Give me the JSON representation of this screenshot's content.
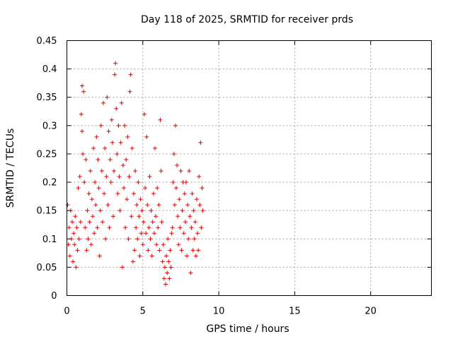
{
  "chart_data": {
    "type": "scatter",
    "title": "Day 118 of 2025, SRMTID for receiver prds",
    "xlabel": "GPS time / hours",
    "ylabel": "SRMTID / TECUs",
    "xlim": [
      0,
      24
    ],
    "ylim": [
      0,
      0.45
    ],
    "xticks": [
      0,
      5,
      10,
      15,
      20
    ],
    "yticks": [
      0,
      0.05,
      0.1,
      0.15,
      0.2,
      0.25,
      0.3,
      0.35,
      0.4,
      0.45
    ],
    "grid": true,
    "marker": "plus",
    "color": "#e00000",
    "series": [
      {
        "name": "SRMTID",
        "points": [
          [
            0.05,
            0.16
          ],
          [
            0.1,
            0.09
          ],
          [
            0.15,
            0.12
          ],
          [
            0.2,
            0.07
          ],
          [
            0.25,
            0.15
          ],
          [
            0.3,
            0.1
          ],
          [
            0.35,
            0.13
          ],
          [
            0.4,
            0.06
          ],
          [
            0.45,
            0.11
          ],
          [
            0.5,
            0.09
          ],
          [
            0.55,
            0.14
          ],
          [
            0.6,
            0.05
          ],
          [
            0.65,
            0.12
          ],
          [
            0.7,
            0.08
          ],
          [
            0.75,
            0.19
          ],
          [
            0.8,
            0.1
          ],
          [
            0.85,
            0.21
          ],
          [
            0.9,
            0.13
          ],
          [
            0.95,
            0.32
          ],
          [
            1.0,
            0.37
          ],
          [
            1.0,
            0.29
          ],
          [
            1.05,
            0.25
          ],
          [
            1.1,
            0.36
          ],
          [
            1.15,
            0.2
          ],
          [
            1.2,
            0.12
          ],
          [
            1.25,
            0.24
          ],
          [
            1.3,
            0.08
          ],
          [
            1.35,
            0.15
          ],
          [
            1.4,
            0.1
          ],
          [
            1.45,
            0.18
          ],
          [
            1.5,
            0.13
          ],
          [
            1.55,
            0.22
          ],
          [
            1.6,
            0.09
          ],
          [
            1.65,
            0.17
          ],
          [
            1.7,
            0.14
          ],
          [
            1.75,
            0.26
          ],
          [
            1.8,
            0.11
          ],
          [
            1.85,
            0.2
          ],
          [
            1.9,
            0.16
          ],
          [
            1.95,
            0.28
          ],
          [
            2.0,
            0.12
          ],
          [
            2.05,
            0.24
          ],
          [
            2.1,
            0.19
          ],
          [
            2.15,
            0.07
          ],
          [
            2.2,
            0.15
          ],
          [
            2.25,
            0.3
          ],
          [
            2.3,
            0.22
          ],
          [
            2.35,
            0.13
          ],
          [
            2.4,
            0.34
          ],
          [
            2.45,
            0.18
          ],
          [
            2.5,
            0.26
          ],
          [
            2.55,
            0.1
          ],
          [
            2.6,
            0.21
          ],
          [
            2.65,
            0.35
          ],
          [
            2.7,
            0.16
          ],
          [
            2.75,
            0.29
          ],
          [
            2.8,
            0.12
          ],
          [
            2.85,
            0.24
          ],
          [
            2.9,
            0.2
          ],
          [
            2.95,
            0.31
          ],
          [
            3.0,
            0.27
          ],
          [
            3.05,
            0.14
          ],
          [
            3.1,
            0.22
          ],
          [
            3.15,
            0.39
          ],
          [
            3.2,
            0.41
          ],
          [
            3.25,
            0.33
          ],
          [
            3.3,
            0.25
          ],
          [
            3.35,
            0.18
          ],
          [
            3.4,
            0.3
          ],
          [
            3.45,
            0.21
          ],
          [
            3.5,
            0.15
          ],
          [
            3.55,
            0.27
          ],
          [
            3.6,
            0.34
          ],
          [
            3.65,
            0.05
          ],
          [
            3.7,
            0.23
          ],
          [
            3.75,
            0.19
          ],
          [
            3.8,
            0.3
          ],
          [
            3.85,
            0.12
          ],
          [
            3.9,
            0.24
          ],
          [
            3.95,
            0.17
          ],
          [
            4.0,
            0.28
          ],
          [
            4.05,
            0.1
          ],
          [
            4.1,
            0.21
          ],
          [
            4.15,
            0.36
          ],
          [
            4.2,
            0.39
          ],
          [
            4.25,
            0.14
          ],
          [
            4.3,
            0.26
          ],
          [
            4.35,
            0.06
          ],
          [
            4.4,
            0.18
          ],
          [
            4.45,
            0.08
          ],
          [
            4.5,
            0.22
          ],
          [
            4.55,
            0.12
          ],
          [
            4.6,
            0.16
          ],
          [
            4.65,
            0.1
          ],
          [
            4.7,
            0.2
          ],
          [
            4.75,
            0.14
          ],
          [
            4.8,
            0.07
          ],
          [
            4.85,
            0.17
          ],
          [
            4.9,
            0.11
          ],
          [
            4.95,
            0.15
          ],
          [
            5.0,
            0.09
          ],
          [
            5.05,
            0.13
          ],
          [
            5.1,
            0.32
          ],
          [
            5.15,
            0.19
          ],
          [
            5.2,
            0.11
          ],
          [
            5.25,
            0.28
          ],
          [
            5.3,
            0.16
          ],
          [
            5.35,
            0.08
          ],
          [
            5.4,
            0.12
          ],
          [
            5.45,
            0.21
          ],
          [
            5.5,
            0.1
          ],
          [
            5.55,
            0.15
          ],
          [
            5.6,
            0.07
          ],
          [
            5.65,
            0.13
          ],
          [
            5.7,
            0.18
          ],
          [
            5.75,
            0.11
          ],
          [
            5.8,
            0.26
          ],
          [
            5.85,
            0.14
          ],
          [
            5.9,
            0.09
          ],
          [
            5.95,
            0.19
          ],
          [
            6.0,
            0.12
          ],
          [
            6.05,
            0.16
          ],
          [
            6.1,
            0.08
          ],
          [
            6.15,
            0.31
          ],
          [
            6.2,
            0.22
          ],
          [
            6.25,
            0.13
          ],
          [
            6.3,
            0.06
          ],
          [
            6.35,
            0.09
          ],
          [
            6.4,
            0.03
          ],
          [
            6.45,
            0.05
          ],
          [
            6.5,
            0.02
          ],
          [
            6.55,
            0.07
          ],
          [
            6.6,
            0.04
          ],
          [
            6.65,
            0.1
          ],
          [
            6.7,
            0.06
          ],
          [
            6.75,
            0.03
          ],
          [
            6.8,
            0.08
          ],
          [
            6.85,
            0.05
          ],
          [
            6.9,
            0.11
          ],
          [
            6.95,
            0.12
          ],
          [
            7.0,
            0.2
          ],
          [
            7.05,
            0.25
          ],
          [
            7.1,
            0.16
          ],
          [
            7.15,
            0.3
          ],
          [
            7.2,
            0.19
          ],
          [
            7.25,
            0.23
          ],
          [
            7.3,
            0.14
          ],
          [
            7.35,
            0.09
          ],
          [
            7.4,
            0.17
          ],
          [
            7.45,
            0.12
          ],
          [
            7.5,
            0.22
          ],
          [
            7.55,
            0.08
          ],
          [
            7.6,
            0.15
          ],
          [
            7.65,
            0.2
          ],
          [
            7.7,
            0.11
          ],
          [
            7.75,
            0.18
          ],
          [
            7.8,
            0.13
          ],
          [
            7.85,
            0.2
          ],
          [
            7.9,
            0.07
          ],
          [
            7.95,
            0.16
          ],
          [
            8.0,
            0.1
          ],
          [
            8.05,
            0.22
          ],
          [
            8.1,
            0.14
          ],
          [
            8.15,
            0.04
          ],
          [
            8.2,
            0.12
          ],
          [
            8.25,
            0.18
          ],
          [
            8.3,
            0.08
          ],
          [
            8.35,
            0.15
          ],
          [
            8.4,
            0.1
          ],
          [
            8.45,
            0.13
          ],
          [
            8.5,
            0.07
          ],
          [
            8.55,
            0.17
          ],
          [
            8.6,
            0.11
          ],
          [
            8.65,
            0.08
          ],
          [
            8.7,
            0.21
          ],
          [
            8.75,
            0.16
          ],
          [
            8.8,
            0.27
          ],
          [
            8.85,
            0.12
          ],
          [
            8.9,
            0.19
          ],
          [
            8.95,
            0.15
          ]
        ]
      }
    ]
  }
}
